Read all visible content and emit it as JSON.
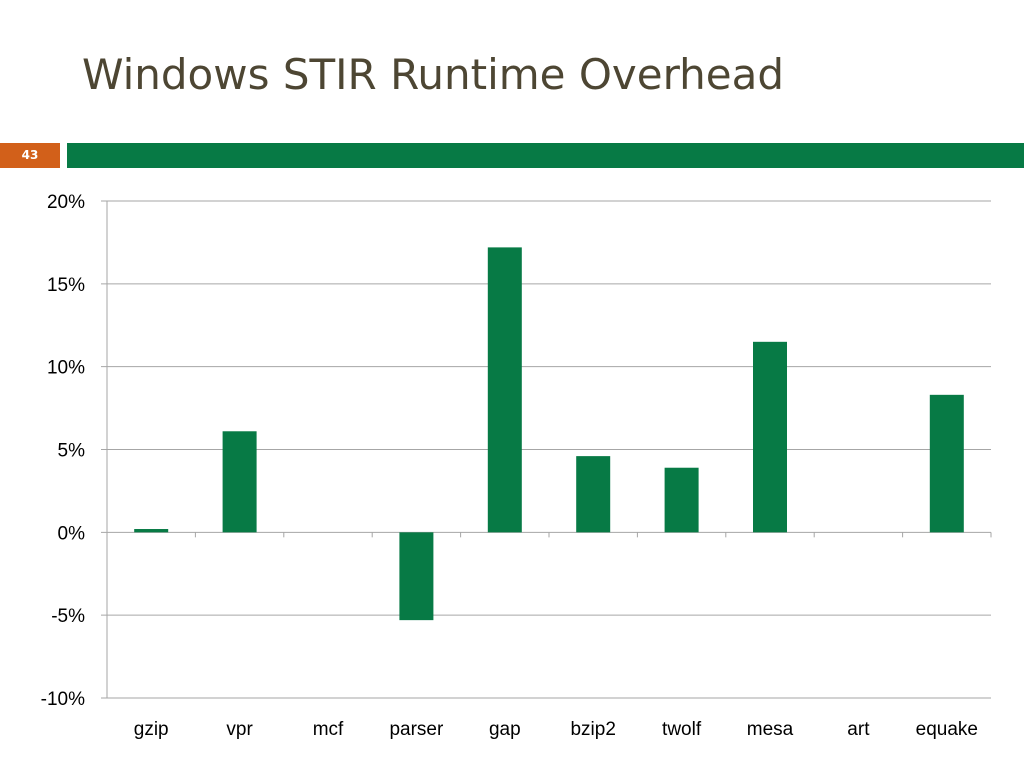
{
  "slide": {
    "title": "Windows STIR Runtime Overhead",
    "number": "43"
  },
  "colors": {
    "title": "#4d4633",
    "accent_green": "#077a45",
    "accent_orange": "#d2601a",
    "gridline": "#a6a6a6"
  },
  "chart_data": {
    "type": "bar",
    "categories": [
      "gzip",
      "vpr",
      "mcf",
      "parser",
      "gap",
      "bzip2",
      "twolf",
      "mesa",
      "art",
      "equake"
    ],
    "values": [
      0.2,
      6.1,
      0,
      -5.3,
      17.2,
      4.6,
      3.9,
      11.5,
      0,
      8.3
    ],
    "ylim": [
      -10,
      20
    ],
    "yticks": [
      20,
      15,
      10,
      5,
      0,
      -5,
      -10
    ],
    "ytick_labels": [
      "20%",
      "15%",
      "10%",
      "5%",
      "0%",
      "-5%",
      "-10%"
    ],
    "bar_color": "#077a45",
    "grid": true,
    "legend": false
  }
}
